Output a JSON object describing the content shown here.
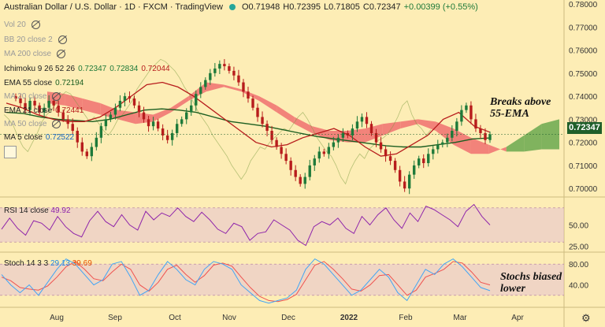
{
  "header": {
    "symbol": "Australian Dollar / U.S. Dollar · 1D · FXCM · TradingView",
    "open": "O0.71948",
    "high": "H0.72395",
    "low": "L0.71805",
    "close": "C0.72347",
    "change": "+0.00399 (+0.55%)"
  },
  "overlays": {
    "vol": "Vol 20",
    "bb": "BB 20 close 2",
    "ma200": "MA 200 close",
    "ichimoku": {
      "label": "Ichimoku 9 26 52 26",
      "v1": "0.72347",
      "v2": "0.72834",
      "v3": "0.72044"
    },
    "ema55": {
      "label": "EMA 55 close",
      "value": "0.72194"
    },
    "ma20": "MA 20 close",
    "ema21": {
      "label": "EMA 21 close",
      "value": "0.72441"
    },
    "ma50": "MA 50 close",
    "ma5": {
      "label": "MA 5 close",
      "value": "0.72522"
    }
  },
  "rsi_label": {
    "name": "RSI 14 close",
    "value": "49.92"
  },
  "stoch_label": {
    "name": "Stoch 14 3 3",
    "k": "29.13",
    "d": "39.69"
  },
  "annotations": {
    "a1": "Breaks above",
    "a2": "55-EMA",
    "a3": "Stochs biased",
    "a4": "lower"
  },
  "current_price": "0.72347",
  "colors": {
    "bg": "#fdedb5",
    "up": "#1e7a3a",
    "down": "#b71c1c",
    "cloud_green": "#6aa84f",
    "cloud_red": "#f07070",
    "ema55": "#1b5e20",
    "ema21": "#b71c1c",
    "rsi": "#8e24aa",
    "stoch_k": "#42a5f5",
    "stoch_d": "#ef5350"
  },
  "chart_data": [
    {
      "type": "candlestick",
      "title": "Australian Dollar / U.S. Dollar · 1D · FXCM",
      "y_ticks": [
        "0.78000",
        "0.77000",
        "0.76000",
        "0.75000",
        "0.74000",
        "0.73000",
        "0.72000",
        "0.71000",
        "0.70000"
      ],
      "ylim": [
        0.697,
        0.78
      ],
      "x_ticks": [
        "Aug",
        "Sep",
        "Oct",
        "Nov",
        "Dec",
        "2022",
        "Feb",
        "Mar",
        "Apr"
      ],
      "closes": [
        0.739,
        0.737,
        0.734,
        0.738,
        0.736,
        0.733,
        0.735,
        0.738,
        0.736,
        0.733,
        0.73,
        0.728,
        0.725,
        0.72,
        0.716,
        0.714,
        0.718,
        0.722,
        0.727,
        0.73,
        0.732,
        0.735,
        0.738,
        0.74,
        0.739,
        0.736,
        0.733,
        0.73,
        0.727,
        0.729,
        0.726,
        0.723,
        0.721,
        0.724,
        0.728,
        0.73,
        0.733,
        0.736,
        0.741,
        0.744,
        0.747,
        0.75,
        0.752,
        0.754,
        0.753,
        0.751,
        0.749,
        0.746,
        0.742,
        0.739,
        0.735,
        0.731,
        0.728,
        0.725,
        0.721,
        0.718,
        0.715,
        0.712,
        0.708,
        0.705,
        0.702,
        0.705,
        0.71,
        0.713,
        0.716,
        0.715,
        0.718,
        0.72,
        0.722,
        0.724,
        0.723,
        0.726,
        0.729,
        0.731,
        0.728,
        0.724,
        0.72,
        0.717,
        0.714,
        0.712,
        0.708,
        0.703,
        0.7,
        0.706,
        0.71,
        0.713,
        0.711,
        0.715,
        0.717,
        0.719,
        0.72,
        0.722,
        0.725,
        0.729,
        0.734,
        0.736,
        0.73,
        0.726,
        0.724,
        0.721,
        0.7235
      ],
      "ema55": [
        0.733,
        0.7325,
        0.731,
        0.73,
        0.7295,
        0.729,
        0.73,
        0.732,
        0.734,
        0.7345,
        0.734,
        0.733,
        0.731,
        0.729,
        0.728,
        0.727,
        0.7255,
        0.724,
        0.7225,
        0.7215,
        0.7205,
        0.7195,
        0.7185,
        0.718,
        0.718,
        0.719,
        0.72,
        0.7215,
        0.7219
      ],
      "ema21": [
        0.737,
        0.735,
        0.732,
        0.73,
        0.729,
        0.729,
        0.731,
        0.735,
        0.74,
        0.745,
        0.746,
        0.744,
        0.74,
        0.735,
        0.73,
        0.725,
        0.72,
        0.718,
        0.719,
        0.722,
        0.724,
        0.726,
        0.723,
        0.718,
        0.714,
        0.715,
        0.719,
        0.723,
        0.73,
        0.733,
        0.727,
        0.7244
      ],
      "cloud": {
        "a": [
          0.737,
          0.736,
          0.734,
          0.732,
          0.73,
          0.728,
          0.729,
          0.733,
          0.738,
          0.742,
          0.744,
          0.742,
          0.738,
          0.733,
          0.728,
          0.724,
          0.721,
          0.72,
          0.72,
          0.723,
          0.726,
          0.728,
          0.725,
          0.719,
          0.715,
          0.715,
          0.718,
          0.723,
          0.728,
          0.73
        ],
        "b": [
          0.742,
          0.741,
          0.739,
          0.737,
          0.734,
          0.733,
          0.732,
          0.735,
          0.74,
          0.746,
          0.745,
          0.743,
          0.74,
          0.736,
          0.731,
          0.727,
          0.725,
          0.725,
          0.726,
          0.728,
          0.729,
          0.73,
          0.729,
          0.726,
          0.722,
          0.719,
          0.716,
          0.716,
          0.717,
          0.717
        ]
      }
    },
    {
      "type": "line",
      "title": "RSI 14 close",
      "y_ticks": [
        "50.00",
        "25.00"
      ],
      "ylim": [
        20,
        80
      ],
      "values": [
        45,
        58,
        46,
        38,
        55,
        52,
        44,
        60,
        48,
        40,
        36,
        55,
        66,
        54,
        48,
        62,
        50,
        44,
        66,
        56,
        64,
        60,
        70,
        60,
        54,
        65,
        56,
        45,
        40,
        52,
        48,
        32,
        40,
        42,
        56,
        50,
        44,
        32,
        26,
        48,
        54,
        50,
        58,
        46,
        40,
        60,
        50,
        62,
        70,
        56,
        46,
        64,
        54,
        72,
        68,
        62,
        56,
        48,
        66,
        74,
        60,
        50
      ]
    },
    {
      "type": "line",
      "title": "Stoch 14 3 3",
      "y_ticks": [
        "80.00",
        "40.00"
      ],
      "ylim": [
        0,
        100
      ],
      "k": [
        60,
        40,
        25,
        40,
        20,
        45,
        70,
        90,
        80,
        60,
        40,
        50,
        80,
        85,
        55,
        20,
        30,
        60,
        85,
        70,
        50,
        40,
        70,
        85,
        80,
        70,
        40,
        25,
        10,
        5,
        10,
        15,
        30,
        70,
        90,
        80,
        60,
        40,
        20,
        30,
        50,
        70,
        55,
        25,
        10,
        40,
        70,
        60,
        80,
        90,
        75,
        55,
        35,
        29
      ],
      "d": [
        55,
        48,
        35,
        32,
        30,
        38,
        55,
        75,
        85,
        70,
        52,
        48,
        65,
        80,
        70,
        40,
        28,
        45,
        70,
        78,
        60,
        45,
        58,
        78,
        82,
        76,
        55,
        35,
        18,
        10,
        8,
        12,
        22,
        50,
        78,
        85,
        70,
        52,
        32,
        28,
        40,
        58,
        60,
        40,
        20,
        30,
        55,
        62,
        70,
        85,
        82,
        65,
        45,
        40
      ]
    }
  ]
}
